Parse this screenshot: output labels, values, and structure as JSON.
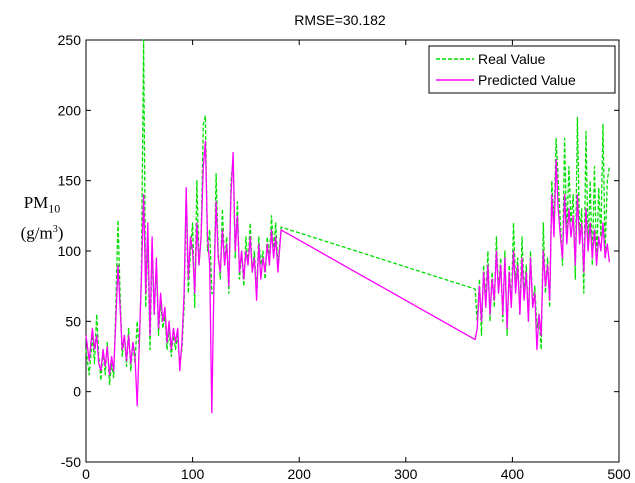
{
  "chart_data": {
    "type": "line",
    "title": "RMSE=30.182",
    "xlabel": "",
    "ylabel": {
      "quantity": "PM",
      "subscript": "10",
      "unit_prefix": "(g/m",
      "unit_exponent": "3",
      "unit_suffix": ")"
    },
    "xlim": [
      0,
      500
    ],
    "ylim": [
      -50,
      250
    ],
    "xticks": [
      0,
      100,
      200,
      300,
      400,
      500
    ],
    "yticks": [
      -50,
      0,
      50,
      100,
      150,
      200,
      250
    ],
    "grid": false,
    "legend_position": "top-right",
    "series": [
      {
        "name": "Real Value",
        "color": "#00e000",
        "style": "dashed",
        "points": [
          [
            0,
            30
          ],
          [
            3,
            12
          ],
          [
            6,
            40
          ],
          [
            8,
            20
          ],
          [
            10,
            55
          ],
          [
            12,
            25
          ],
          [
            14,
            8
          ],
          [
            16,
            30
          ],
          [
            18,
            12
          ],
          [
            20,
            35
          ],
          [
            22,
            5
          ],
          [
            24,
            20
          ],
          [
            26,
            10
          ],
          [
            28,
            60
          ],
          [
            30,
            122
          ],
          [
            32,
            70
          ],
          [
            34,
            25
          ],
          [
            36,
            40
          ],
          [
            38,
            18
          ],
          [
            40,
            45
          ],
          [
            42,
            15
          ],
          [
            44,
            35
          ],
          [
            46,
            20
          ],
          [
            48,
            50
          ],
          [
            50,
            30
          ],
          [
            52,
            85
          ],
          [
            54,
            250
          ],
          [
            56,
            60
          ],
          [
            58,
            110
          ],
          [
            60,
            30
          ],
          [
            62,
            100
          ],
          [
            64,
            55
          ],
          [
            66,
            90
          ],
          [
            68,
            40
          ],
          [
            70,
            65
          ],
          [
            72,
            45
          ],
          [
            74,
            55
          ],
          [
            76,
            30
          ],
          [
            78,
            45
          ],
          [
            80,
            25
          ],
          [
            82,
            42
          ],
          [
            84,
            30
          ],
          [
            86,
            40
          ],
          [
            88,
            20
          ],
          [
            90,
            30
          ],
          [
            92,
            60
          ],
          [
            94,
            140
          ],
          [
            96,
            70
          ],
          [
            98,
            100
          ],
          [
            100,
            120
          ],
          [
            102,
            60
          ],
          [
            104,
            150
          ],
          [
            106,
            90
          ],
          [
            108,
            110
          ],
          [
            110,
            190
          ],
          [
            112,
            196
          ],
          [
            114,
            100
          ],
          [
            116,
            115
          ],
          [
            118,
            70
          ],
          [
            120,
            70
          ],
          [
            122,
            155
          ],
          [
            124,
            100
          ],
          [
            126,
            80
          ],
          [
            128,
            130
          ],
          [
            130,
            90
          ],
          [
            132,
            110
          ],
          [
            134,
            70
          ],
          [
            136,
            150
          ],
          [
            138,
            165
          ],
          [
            140,
            95
          ],
          [
            142,
            135
          ],
          [
            144,
            80
          ],
          [
            146,
            100
          ],
          [
            148,
            75
          ],
          [
            150,
            110
          ],
          [
            152,
            90
          ],
          [
            154,
            120
          ],
          [
            156,
            85
          ],
          [
            158,
            100
          ],
          [
            160,
            70
          ],
          [
            162,
            110
          ],
          [
            164,
            90
          ],
          [
            166,
            100
          ],
          [
            168,
            80
          ],
          [
            170,
            110
          ],
          [
            172,
            95
          ],
          [
            174,
            125
          ],
          [
            176,
            100
          ],
          [
            178,
            120
          ],
          [
            180,
            90
          ],
          [
            183,
            117
          ],
          [
            365,
            73
          ],
          [
            367,
            50
          ],
          [
            369,
            80
          ],
          [
            371,
            40
          ],
          [
            373,
            90
          ],
          [
            375,
            65
          ],
          [
            377,
            100
          ],
          [
            379,
            50
          ],
          [
            381,
            85
          ],
          [
            383,
            60
          ],
          [
            385,
            110
          ],
          [
            387,
            70
          ],
          [
            389,
            95
          ],
          [
            391,
            50
          ],
          [
            393,
            100
          ],
          [
            395,
            40
          ],
          [
            397,
            90
          ],
          [
            399,
            60
          ],
          [
            401,
            120
          ],
          [
            403,
            75
          ],
          [
            405,
            95
          ],
          [
            407,
            55
          ],
          [
            409,
            110
          ],
          [
            411,
            70
          ],
          [
            413,
            90
          ],
          [
            415,
            50
          ],
          [
            417,
            100
          ],
          [
            419,
            60
          ],
          [
            421,
            75
          ],
          [
            423,
            45
          ],
          [
            425,
            55
          ],
          [
            427,
            30
          ],
          [
            429,
            120
          ],
          [
            431,
            70
          ],
          [
            433,
            95
          ],
          [
            435,
            60
          ],
          [
            437,
            150
          ],
          [
            439,
            120
          ],
          [
            441,
            180
          ],
          [
            443,
            150
          ],
          [
            445,
            120
          ],
          [
            447,
            90
          ],
          [
            449,
            180
          ],
          [
            451,
            110
          ],
          [
            453,
            160
          ],
          [
            455,
            120
          ],
          [
            457,
            140
          ],
          [
            459,
            80
          ],
          [
            461,
            195
          ],
          [
            463,
            110
          ],
          [
            465,
            130
          ],
          [
            467,
            70
          ],
          [
            469,
            185
          ],
          [
            471,
            100
          ],
          [
            473,
            150
          ],
          [
            475,
            90
          ],
          [
            477,
            160
          ],
          [
            479,
            90
          ],
          [
            481,
            145
          ],
          [
            483,
            110
          ],
          [
            485,
            190
          ],
          [
            487,
            100
          ],
          [
            489,
            150
          ],
          [
            491,
            160
          ]
        ]
      },
      {
        "name": "Predicted Value",
        "color": "#ff00ff",
        "style": "solid",
        "points": [
          [
            0,
            40
          ],
          [
            3,
            22
          ],
          [
            6,
            45
          ],
          [
            8,
            30
          ],
          [
            10,
            40
          ],
          [
            12,
            20
          ],
          [
            14,
            15
          ],
          [
            16,
            30
          ],
          [
            18,
            18
          ],
          [
            20,
            32
          ],
          [
            22,
            12
          ],
          [
            24,
            25
          ],
          [
            26,
            15
          ],
          [
            28,
            50
          ],
          [
            30,
            90
          ],
          [
            32,
            60
          ],
          [
            34,
            30
          ],
          [
            36,
            40
          ],
          [
            38,
            22
          ],
          [
            40,
            40
          ],
          [
            42,
            20
          ],
          [
            44,
            35
          ],
          [
            46,
            25
          ],
          [
            48,
            -10
          ],
          [
            50,
            35
          ],
          [
            52,
            80
          ],
          [
            54,
            140
          ],
          [
            56,
            70
          ],
          [
            58,
            120
          ],
          [
            60,
            40
          ],
          [
            62,
            110
          ],
          [
            64,
            55
          ],
          [
            66,
            95
          ],
          [
            68,
            45
          ],
          [
            70,
            70
          ],
          [
            72,
            50
          ],
          [
            74,
            60
          ],
          [
            76,
            35
          ],
          [
            78,
            50
          ],
          [
            80,
            30
          ],
          [
            82,
            45
          ],
          [
            84,
            35
          ],
          [
            86,
            45
          ],
          [
            88,
            15
          ],
          [
            90,
            35
          ],
          [
            92,
            70
          ],
          [
            94,
            145
          ],
          [
            96,
            80
          ],
          [
            98,
            110
          ],
          [
            100,
            100
          ],
          [
            102,
            70
          ],
          [
            104,
            120
          ],
          [
            106,
            90
          ],
          [
            108,
            110
          ],
          [
            110,
            160
          ],
          [
            112,
            178
          ],
          [
            114,
            110
          ],
          [
            116,
            90
          ],
          [
            118,
            -15
          ],
          [
            120,
            75
          ],
          [
            122,
            135
          ],
          [
            124,
            95
          ],
          [
            126,
            85
          ],
          [
            128,
            115
          ],
          [
            130,
            90
          ],
          [
            132,
            105
          ],
          [
            134,
            75
          ],
          [
            136,
            140
          ],
          [
            138,
            170
          ],
          [
            140,
            100
          ],
          [
            142,
            125
          ],
          [
            144,
            85
          ],
          [
            146,
            100
          ],
          [
            148,
            80
          ],
          [
            150,
            100
          ],
          [
            152,
            90
          ],
          [
            154,
            110
          ],
          [
            156,
            85
          ],
          [
            158,
            95
          ],
          [
            160,
            65
          ],
          [
            162,
            105
          ],
          [
            164,
            80
          ],
          [
            166,
            95
          ],
          [
            168,
            85
          ],
          [
            170,
            105
          ],
          [
            172,
            90
          ],
          [
            174,
            115
          ],
          [
            176,
            95
          ],
          [
            178,
            110
          ],
          [
            180,
            85
          ],
          [
            183,
            115
          ],
          [
            365,
            37
          ],
          [
            367,
            45
          ],
          [
            369,
            75
          ],
          [
            371,
            50
          ],
          [
            373,
            85
          ],
          [
            375,
            60
          ],
          [
            377,
            90
          ],
          [
            379,
            55
          ],
          [
            381,
            80
          ],
          [
            383,
            65
          ],
          [
            385,
            100
          ],
          [
            387,
            70
          ],
          [
            389,
            90
          ],
          [
            391,
            55
          ],
          [
            393,
            95
          ],
          [
            395,
            45
          ],
          [
            397,
            85
          ],
          [
            399,
            60
          ],
          [
            401,
            100
          ],
          [
            403,
            70
          ],
          [
            405,
            90
          ],
          [
            407,
            55
          ],
          [
            409,
            95
          ],
          [
            411,
            65
          ],
          [
            413,
            85
          ],
          [
            415,
            50
          ],
          [
            417,
            95
          ],
          [
            419,
            60
          ],
          [
            421,
            70
          ],
          [
            423,
            30
          ],
          [
            425,
            55
          ],
          [
            427,
            40
          ],
          [
            429,
            100
          ],
          [
            431,
            75
          ],
          [
            433,
            90
          ],
          [
            435,
            65
          ],
          [
            437,
            140
          ],
          [
            439,
            110
          ],
          [
            441,
            165
          ],
          [
            443,
            130
          ],
          [
            445,
            110
          ],
          [
            447,
            95
          ],
          [
            449,
            140
          ],
          [
            451,
            105
          ],
          [
            453,
            130
          ],
          [
            455,
            110
          ],
          [
            457,
            125
          ],
          [
            459,
            90
          ],
          [
            461,
            140
          ],
          [
            463,
            105
          ],
          [
            465,
            120
          ],
          [
            467,
            85
          ],
          [
            469,
            130
          ],
          [
            471,
            100
          ],
          [
            473,
            120
          ],
          [
            475,
            95
          ],
          [
            477,
            115
          ],
          [
            479,
            90
          ],
          [
            481,
            110
          ],
          [
            483,
            100
          ],
          [
            485,
            120
          ],
          [
            487,
            95
          ],
          [
            489,
            105
          ],
          [
            491,
            92
          ]
        ]
      }
    ]
  }
}
